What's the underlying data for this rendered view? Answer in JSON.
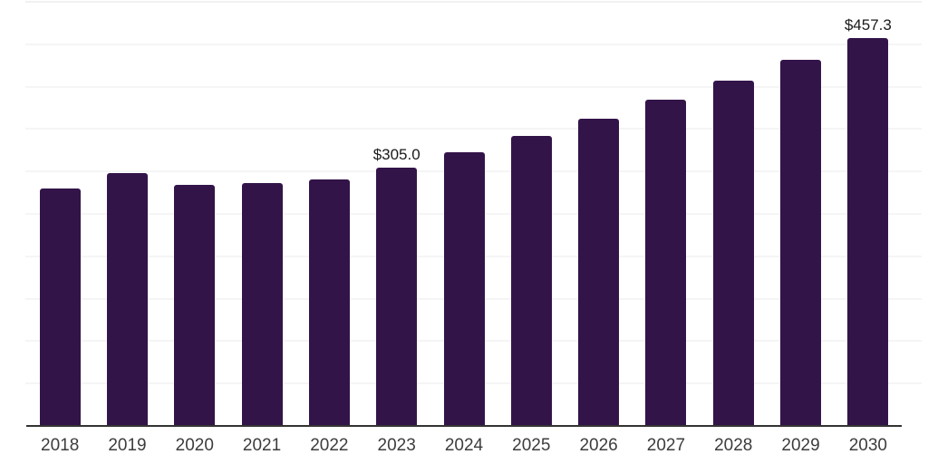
{
  "chart_data": {
    "type": "bar",
    "title": "",
    "categories": [
      "2018",
      "2019",
      "2020",
      "2021",
      "2022",
      "2023",
      "2024",
      "2025",
      "2026",
      "2027",
      "2028",
      "2029",
      "2030"
    ],
    "values": [
      280.0,
      298.0,
      284.5,
      286.5,
      290.5,
      305.0,
      323.1,
      342.4,
      362.7,
      384.3,
      407.2,
      431.5,
      457.3
    ],
    "bar_labels": [
      "",
      "",
      "",
      "",
      "",
      "$305.0",
      "",
      "",
      "",
      "",
      "",
      "",
      "$457.3"
    ],
    "xlabel": "",
    "ylabel": "",
    "ylim": [
      0,
      500
    ],
    "gridline_step": 50,
    "grid": true,
    "y_axis_labels_visible": false,
    "legend": "none",
    "colors": {
      "bar": "#331449",
      "axis_line": "#333333",
      "gridline": "#ebebeb",
      "gridline_top": "#e3e3e3",
      "tick_label": "#3d3d3d",
      "data_label": "#1a1a1a",
      "background": "#ffffff"
    }
  }
}
